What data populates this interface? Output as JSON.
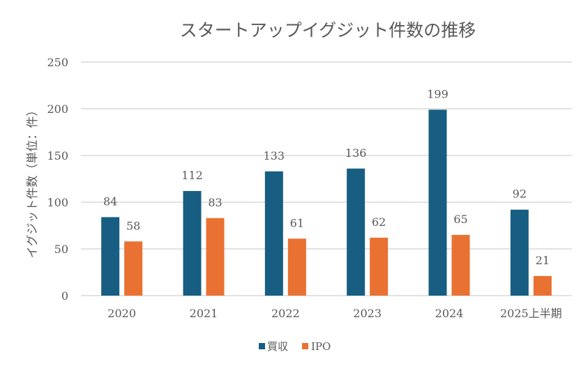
{
  "chart_data": {
    "type": "bar",
    "title": "スタートアップイグジット件数の推移",
    "xlabel": "",
    "ylabel": "イグジット件数（単位：件）",
    "categories": [
      "2020",
      "2021",
      "2022",
      "2023",
      "2024",
      "2025上半期"
    ],
    "series": [
      {
        "name": "買収",
        "values": [
          84,
          112,
          133,
          136,
          199,
          92
        ],
        "color": "#175E82"
      },
      {
        "name": "IPO",
        "values": [
          58,
          83,
          61,
          62,
          65,
          21
        ],
        "color": "#E97132"
      }
    ],
    "ylim": [
      0,
      250
    ],
    "yticks": [
      "0",
      "50",
      "100",
      "150",
      "200",
      "250"
    ],
    "grid": true,
    "legend": "bottom",
    "data_labels": true
  }
}
